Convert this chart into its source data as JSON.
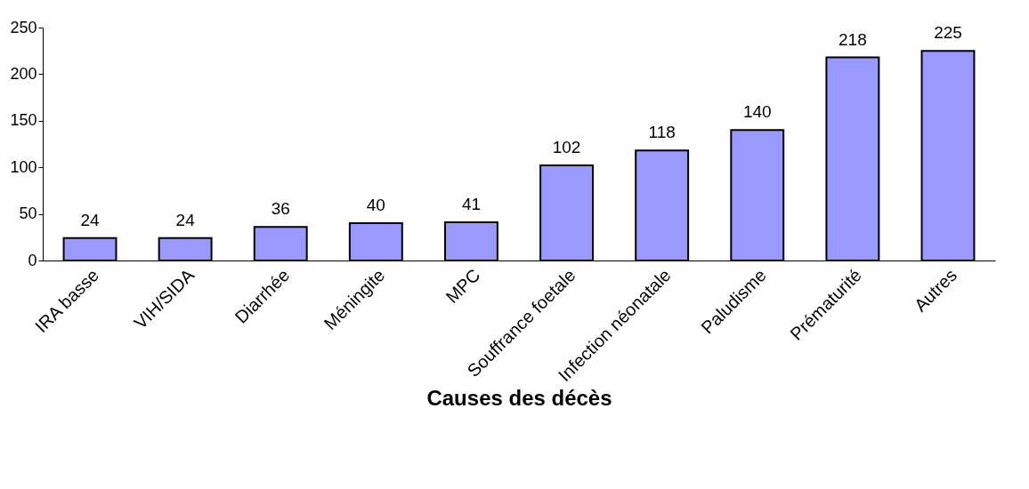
{
  "chart_data": {
    "type": "bar",
    "xlabel": "Causes des décès",
    "categories": [
      "IRA basse",
      "VIH/SIDA",
      "Diarrhée",
      "Méningite",
      "MPC",
      "Souffrance foetale",
      "Infection néonatale",
      "Paludisme",
      "Prématurité",
      "Autres"
    ],
    "values": [
      24,
      24,
      36,
      40,
      41,
      102,
      118,
      140,
      218,
      225
    ],
    "color": "#9999ff",
    "ylim": [
      0,
      250
    ],
    "yticks": [
      0,
      50,
      100,
      150,
      200,
      250
    ],
    "grid": false,
    "data_labels": true
  }
}
